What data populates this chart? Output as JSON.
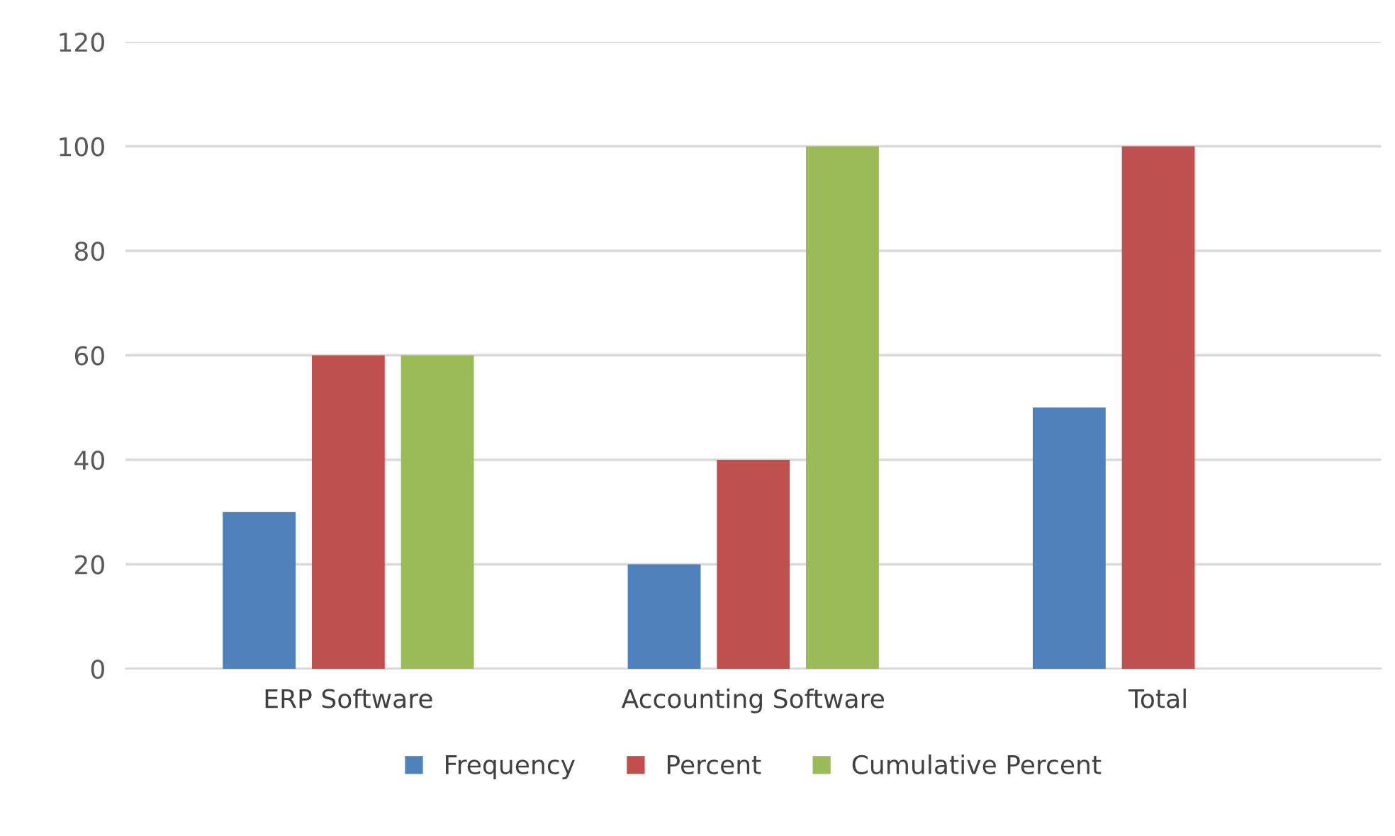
{
  "chart_data": {
    "type": "bar",
    "categories": [
      "ERP Software",
      "Accounting Software",
      "Total"
    ],
    "series": [
      {
        "name": "Frequency",
        "color": "#4f81bd",
        "values": [
          30,
          20,
          50
        ]
      },
      {
        "name": "Percent",
        "color": "#c0504d",
        "values": [
          60,
          40,
          100
        ]
      },
      {
        "name": "Cumulative Percent",
        "color": "#9bbb59",
        "values": [
          60,
          100,
          null
        ]
      }
    ],
    "ylim": [
      0,
      120
    ],
    "yticks": [
      0,
      20,
      40,
      60,
      80,
      100,
      120
    ],
    "grid": "y",
    "legend": "bottom"
  }
}
